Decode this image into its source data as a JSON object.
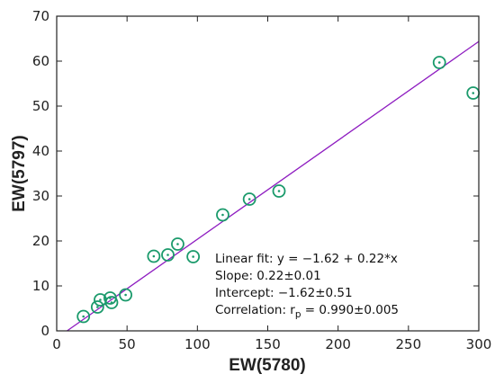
{
  "chart_data": {
    "type": "scatter",
    "title": "",
    "xlabel": "EW(5780)",
    "ylabel": "EW(5797)",
    "xlim": [
      0,
      300
    ],
    "ylim": [
      0,
      70
    ],
    "xticks": [
      0,
      50,
      100,
      150,
      200,
      250,
      300
    ],
    "yticks": [
      0,
      10,
      20,
      30,
      40,
      50,
      60,
      70
    ],
    "grid": false,
    "series": [
      {
        "marker": "circle-dot",
        "color": "#1a9a6b",
        "points": [
          {
            "x": 19,
            "y": 3.2
          },
          {
            "x": 29,
            "y": 5.3
          },
          {
            "x": 31,
            "y": 6.9
          },
          {
            "x": 38,
            "y": 7.3
          },
          {
            "x": 39,
            "y": 6.3
          },
          {
            "x": 49,
            "y": 8.0
          },
          {
            "x": 69,
            "y": 16.6
          },
          {
            "x": 79,
            "y": 16.9
          },
          {
            "x": 86,
            "y": 19.3
          },
          {
            "x": 97,
            "y": 16.5
          },
          {
            "x": 118,
            "y": 25.8
          },
          {
            "x": 137,
            "y": 29.3
          },
          {
            "x": 158,
            "y": 31.1
          },
          {
            "x": 272,
            "y": 59.7
          },
          {
            "x": 296,
            "y": 52.9
          }
        ]
      }
    ],
    "fit_line": {
      "intercept": -1.62,
      "slope": 0.22,
      "color": "#8e1cc0"
    },
    "annotations": [
      "Linear fit: y = −1.62 + 0.22*x",
      "Slope: 0.22±0.01",
      "Intercept: −1.62±0.51",
      "Correlation: r"
    ],
    "annotation_subscript": "p",
    "annotation_corr_value": " = 0.990±0.005"
  }
}
